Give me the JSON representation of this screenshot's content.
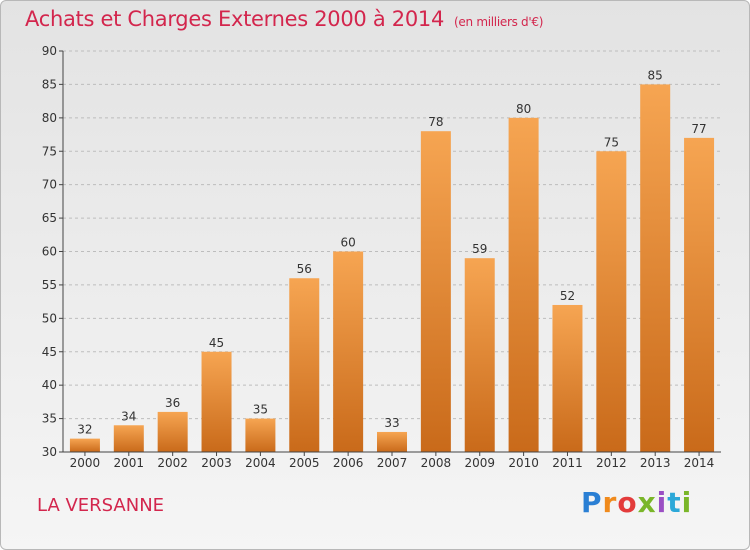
{
  "header": {
    "title": "Achats et Charges Externes 2000 à 2014",
    "unit": "(en milliers d'€)"
  },
  "footer": {
    "commune": "LA VERSANNE",
    "logo": "Proxiti"
  },
  "colors": {
    "title": "#d3264d",
    "bar_top": "#f6a552",
    "bar_bottom": "#c96a1a"
  },
  "chart_data": {
    "type": "bar",
    "title": "Achats et Charges Externes 2000 à 2014",
    "subtitle": "(en milliers d'€)",
    "xlabel": "",
    "ylabel": "",
    "categories": [
      "2000",
      "2001",
      "2002",
      "2003",
      "2004",
      "2005",
      "2006",
      "2007",
      "2008",
      "2009",
      "2010",
      "2011",
      "2012",
      "2013",
      "2014"
    ],
    "values": [
      32,
      34,
      36,
      45,
      35,
      56,
      60,
      33,
      78,
      59,
      80,
      52,
      75,
      85,
      77
    ],
    "ylim": [
      30,
      90
    ],
    "yticks": [
      30,
      35,
      40,
      45,
      50,
      55,
      60,
      65,
      70,
      75,
      80,
      85,
      90
    ],
    "grid": "horizontal-dashed",
    "data_labels": true
  }
}
